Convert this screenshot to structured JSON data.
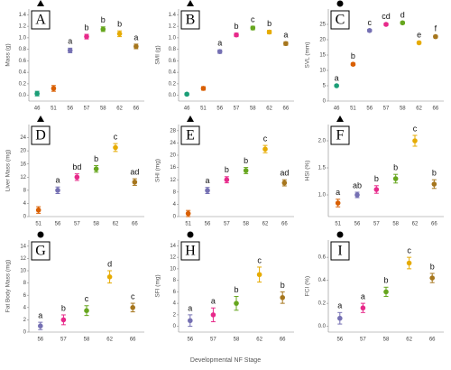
{
  "xlabel": "Developmental NF Stage",
  "chart_data": [
    {
      "type": "scatter",
      "label": "A",
      "symbol": "triangle",
      "ylabel": "Mass (g)",
      "categories": [
        "46",
        "51",
        "56",
        "57",
        "58",
        "62",
        "66"
      ],
      "values": [
        0.03,
        0.12,
        0.78,
        1.02,
        1.15,
        1.07,
        0.85
      ],
      "errors": [
        0.04,
        0.05,
        0.04,
        0.04,
        0.04,
        0.05,
        0.04
      ],
      "letters": [
        null,
        null,
        "a",
        "b",
        "b",
        "b",
        "a"
      ],
      "colors": [
        "#1b9e77",
        "#d95f02",
        "#7570b3",
        "#e7298a",
        "#66a61e",
        "#e6ab02",
        "#a6761d"
      ],
      "ylim": [
        -0.1,
        1.5
      ],
      "yticks": [
        {
          "value": 0,
          "label": "0.0"
        },
        0.2,
        0.4,
        0.6,
        0.8,
        {
          "value": 1,
          "label": "1.0"
        },
        1.2,
        1.4
      ]
    },
    {
      "type": "scatter",
      "label": "B",
      "symbol": "triangle",
      "ylabel": "SMI (g)",
      "categories": [
        "46",
        "51",
        "56",
        "57",
        "58",
        "62",
        "66"
      ],
      "values": [
        0.02,
        0.12,
        0.76,
        1.05,
        1.17,
        1.1,
        0.9
      ],
      "errors": [
        0.02,
        0.03,
        0.03,
        0.03,
        0.03,
        0.03,
        0.03
      ],
      "letters": [
        null,
        null,
        "a",
        "b",
        "c",
        "b",
        "a"
      ],
      "colors": [
        "#1b9e77",
        "#d95f02",
        "#7570b3",
        "#e7298a",
        "#66a61e",
        "#e6ab02",
        "#a6761d"
      ],
      "ylim": [
        -0.1,
        1.5
      ],
      "yticks": [
        {
          "value": 0,
          "label": "0.0"
        },
        0.2,
        0.4,
        0.6,
        0.8,
        {
          "value": 1,
          "label": "1.0"
        },
        1.2,
        1.4
      ]
    },
    {
      "type": "scatter",
      "label": "C",
      "symbol": "circle",
      "ylabel": "SVL (mm)",
      "categories": [
        "46",
        "51",
        "56",
        "57",
        "58",
        "62",
        "66"
      ],
      "values": [
        5,
        12,
        23,
        25,
        25.5,
        19,
        21
      ],
      "errors": [
        0.3,
        0.4,
        0.4,
        0.4,
        0.4,
        0.4,
        0.4
      ],
      "letters": [
        "a",
        "b",
        "c",
        "cd",
        "d",
        "e",
        "f"
      ],
      "colors": [
        "#1b9e77",
        "#d95f02",
        "#7570b3",
        "#e7298a",
        "#66a61e",
        "#e6ab02",
        "#a6761d"
      ],
      "ylim": [
        0,
        30
      ],
      "yticks": [
        0,
        5,
        10,
        15,
        20,
        25
      ]
    },
    {
      "type": "scatter",
      "label": "D",
      "symbol": "triangle",
      "ylabel": "Liver Mass (mg)",
      "categories": [
        "51",
        "56",
        "57",
        "58",
        "62",
        "66"
      ],
      "values": [
        2,
        8,
        12,
        14.5,
        21,
        10.5
      ],
      "errors": [
        1,
        1,
        1,
        1,
        1.2,
        1
      ],
      "letters": [
        null,
        "a",
        "bd",
        "b",
        "c",
        "ad"
      ],
      "colors": [
        "#d95f02",
        "#7570b3",
        "#e7298a",
        "#66a61e",
        "#e6ab02",
        "#a6761d"
      ],
      "ylim": [
        0,
        28
      ],
      "yticks": [
        0,
        4,
        8,
        12,
        16,
        20,
        24
      ]
    },
    {
      "type": "scatter",
      "label": "E",
      "symbol": "triangle",
      "ylabel": "SHI (mg)",
      "categories": [
        "51",
        "56",
        "57",
        "58",
        "62",
        "66"
      ],
      "values": [
        1,
        8.5,
        12,
        15,
        22,
        11
      ],
      "errors": [
        1,
        1,
        1,
        1,
        1.2,
        1
      ],
      "letters": [
        null,
        "a",
        "b",
        "b",
        "c",
        "ad"
      ],
      "colors": [
        "#d95f02",
        "#7570b3",
        "#e7298a",
        "#66a61e",
        "#e6ab02",
        "#a6761d"
      ],
      "ylim": [
        0,
        30
      ],
      "yticks": [
        0,
        4,
        8,
        12,
        16,
        20,
        24,
        28
      ]
    },
    {
      "type": "scatter",
      "label": "F",
      "symbol": "triangle",
      "ylabel": "HSI (%)",
      "categories": [
        "51",
        "56",
        "57",
        "58",
        "62",
        "66"
      ],
      "values": [
        0.85,
        1.0,
        1.1,
        1.3,
        2.0,
        1.2
      ],
      "errors": [
        0.07,
        0.05,
        0.07,
        0.08,
        0.1,
        0.08
      ],
      "letters": [
        "a",
        "ab",
        "b",
        "b",
        "c",
        "b"
      ],
      "colors": [
        "#d95f02",
        "#7570b3",
        "#e7298a",
        "#66a61e",
        "#e6ab02",
        "#a6761d"
      ],
      "ylim": [
        0.6,
        2.3
      ],
      "yticks": [
        {
          "value": 1,
          "label": "1.0"
        },
        1.5,
        {
          "value": 2,
          "label": "2.0"
        }
      ]
    },
    {
      "type": "scatter",
      "label": "G",
      "symbol": "circle",
      "ylabel": "Fat Body Mass (mg)",
      "categories": [
        "56",
        "57",
        "58",
        "62",
        "66"
      ],
      "values": [
        1,
        2,
        3.5,
        9,
        4
      ],
      "errors": [
        0.6,
        0.8,
        0.8,
        1,
        0.7
      ],
      "letters": [
        "a",
        "b",
        "c",
        "d",
        "c"
      ],
      "colors": [
        "#7570b3",
        "#e7298a",
        "#66a61e",
        "#e6ab02",
        "#a6761d"
      ],
      "ylim": [
        0,
        15
      ],
      "yticks": [
        0,
        2,
        4,
        6,
        8,
        10,
        12,
        14
      ]
    },
    {
      "type": "scatter",
      "label": "H",
      "symbol": "circle",
      "ylabel": "SFI (mg)",
      "categories": [
        "56",
        "57",
        "58",
        "62",
        "66"
      ],
      "values": [
        1,
        2,
        4,
        9,
        5
      ],
      "errors": [
        1,
        1.2,
        1.2,
        1.3,
        1
      ],
      "letters": [
        "a",
        "a",
        "b",
        "c",
        "b"
      ],
      "colors": [
        "#7570b3",
        "#e7298a",
        "#66a61e",
        "#e6ab02",
        "#a6761d"
      ],
      "ylim": [
        -1,
        15
      ],
      "yticks": [
        0,
        2,
        4,
        6,
        8,
        10,
        12,
        14
      ]
    },
    {
      "type": "scatter",
      "label": "I",
      "symbol": "circle",
      "ylabel": "FCI (%)",
      "categories": [
        "56",
        "57",
        "58",
        "62",
        "66"
      ],
      "values": [
        0.07,
        0.16,
        0.3,
        0.55,
        0.42
      ],
      "errors": [
        0.05,
        0.04,
        0.04,
        0.05,
        0.04
      ],
      "letters": [
        "a",
        "a",
        "b",
        "c",
        "b"
      ],
      "colors": [
        "#7570b3",
        "#e7298a",
        "#66a61e",
        "#e6ab02",
        "#a6761d"
      ],
      "ylim": [
        -0.05,
        0.75
      ],
      "yticks": [
        {
          "value": 0,
          "label": "0.0"
        },
        0.2,
        0.4,
        0.6
      ]
    }
  ]
}
